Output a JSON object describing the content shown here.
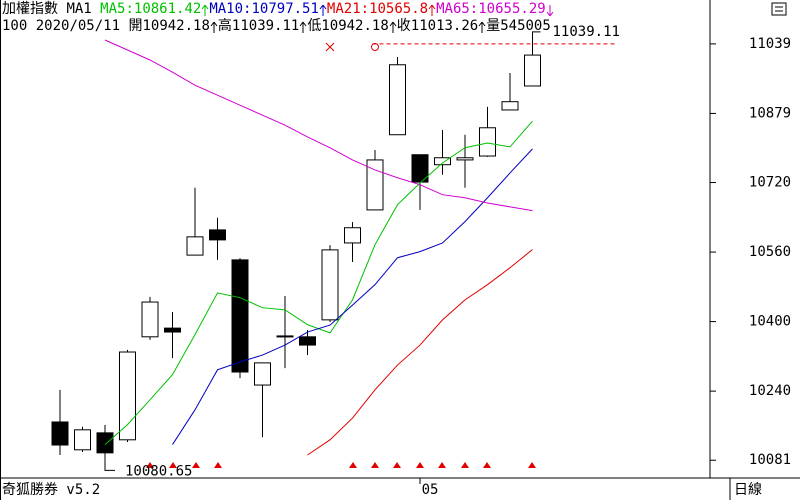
{
  "chart_data": {
    "type": "candlestick",
    "title": "加權指數",
    "ma_label": "MA1",
    "footer": "奇狐勝券 v5.2",
    "period_label": "日線",
    "info": {
      "code": "100",
      "date": "2020/05/11",
      "open_label": "開",
      "high_label": "高",
      "low_label": "低",
      "close_label": "收",
      "volume_label": "量",
      "volume": 545005
    },
    "categories": [
      null,
      null,
      null,
      null,
      null,
      null,
      null,
      null,
      null,
      null,
      null,
      null,
      null,
      null,
      null,
      null,
      "05",
      null,
      null,
      null,
      null,
      null
    ],
    "open": [
      10169,
      10105,
      10144,
      10128,
      10365,
      10385,
      10553,
      10611,
      10542,
      10254,
      10365,
      10365,
      10404,
      10581,
      10657,
      10830,
      10784,
      10761,
      10772,
      10781,
      10887,
      10942.18
    ],
    "high": [
      10243,
      10158,
      10162,
      10335,
      10457,
      10422,
      10708,
      10639,
      10546,
      10305,
      10459,
      10381,
      10576,
      10629,
      10795,
      11009,
      10784,
      10841,
      10830,
      10894,
      10972,
      11039.11
    ],
    "low": [
      10093,
      10100,
      10080.65,
      10123,
      10358,
      10316,
      10553,
      10542,
      10270,
      10134,
      10293,
      10323,
      10399,
      10537,
      10657,
      10830,
      10657,
      10738,
      10708,
      10779,
      10887,
      10942.18
    ],
    "close": [
      10116,
      10151,
      10098,
      10330,
      10445,
      10376,
      10595,
      10588,
      10284,
      10305,
      10367,
      10346,
      10565,
      10616,
      10772,
      10991,
      10721,
      10777,
      10777,
      10846,
      10906,
      11013.26
    ],
    "up_color": "#ffffff",
    "down_color": "#000000",
    "series": [
      {
        "name": "MA5:",
        "color": "#00c000",
        "values": [
          null,
          null,
          10117,
          10163,
          10220,
          10278,
          10370,
          10466,
          10455,
          10432,
          10427,
          10393,
          10374,
          10450,
          10577,
          10669,
          10719,
          10765,
          10800,
          10811,
          10802,
          10861.42
        ]
      },
      {
        "name": "MA10:",
        "color": "#0000c0",
        "values": [
          null,
          null,
          null,
          null,
          null,
          10117,
          10197,
          10289,
          10307,
          10323,
          10346,
          10376,
          10392,
          10438,
          10485,
          10547,
          10561,
          10581,
          10630,
          10685,
          10742,
          10797.51
        ]
      },
      {
        "name": "MA21:",
        "color": "#e00000",
        "values": [
          null,
          null,
          null,
          null,
          null,
          null,
          null,
          null,
          null,
          null,
          null,
          10093,
          10128,
          10178,
          10243,
          10300,
          10346,
          10404,
          10450,
          10485,
          10524,
          10565.8
        ]
      },
      {
        "name": "MA65:",
        "color": "#d000d0",
        "values": [
          null,
          null,
          11048,
          11025,
          11002,
          10974,
          10944,
          10921,
          10898,
          10875,
          10852,
          10825,
          10800,
          10772,
          10749,
          10731,
          10715,
          10692,
          10685,
          10673,
          10664,
          10655.29
        ]
      }
    ],
    "ylim": [
      10047,
      11094
    ],
    "yticks": [
      10081,
      10240,
      10400,
      10560,
      10720,
      10879,
      11039
    ],
    "high_marker_color": "#e00000"
  }
}
